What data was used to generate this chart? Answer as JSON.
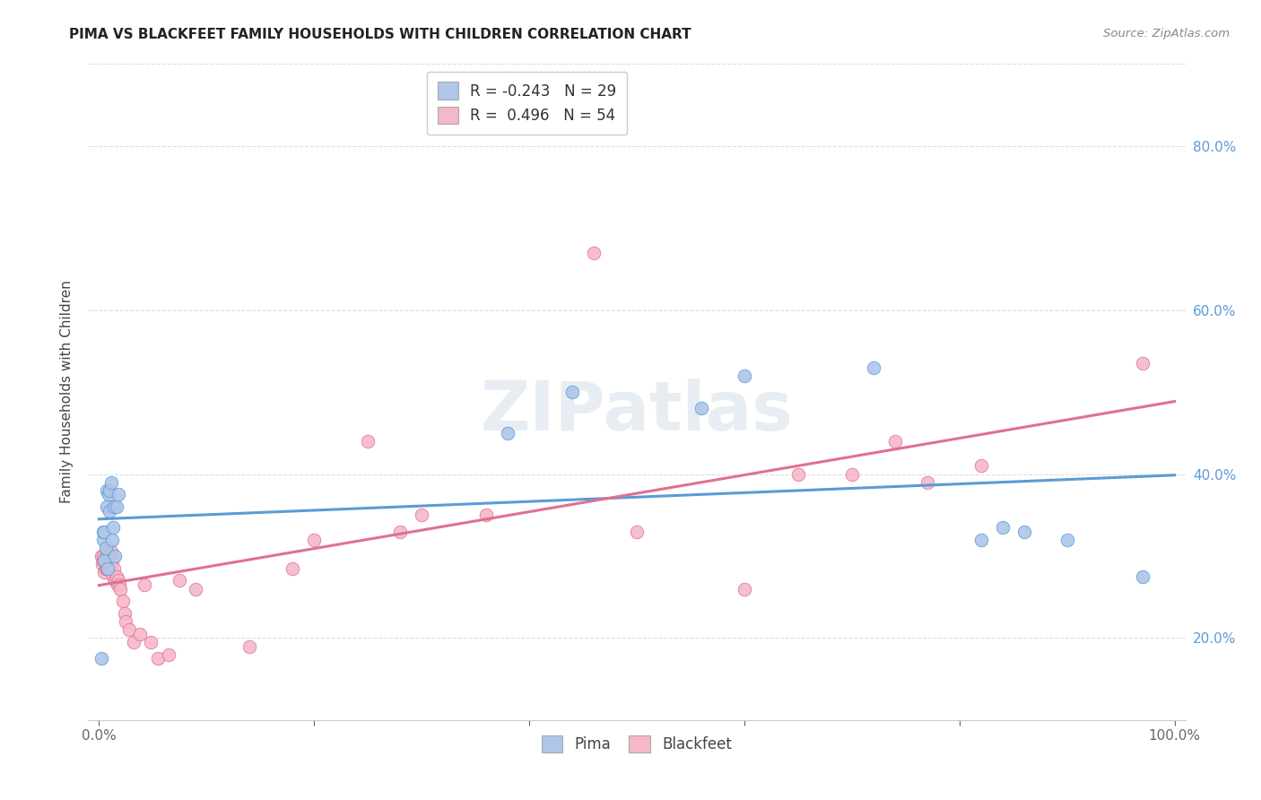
{
  "title": "PIMA VS BLACKFEET FAMILY HOUSEHOLDS WITH CHILDREN CORRELATION CHART",
  "source": "Source: ZipAtlas.com",
  "ylabel": "Family Households with Children",
  "watermark": "ZIPatlas",
  "legend_pima_r": "R = -0.243",
  "legend_pima_n": "N = 29",
  "legend_blackfeet_r": "R =  0.496",
  "legend_blackfeet_n": "N = 54",
  "pima_color": "#aec6e8",
  "blackfeet_color": "#f5b8c8",
  "pima_line_color": "#5b9bd5",
  "blackfeet_line_color": "#e07090",
  "background_color": "#ffffff",
  "pima_x": [
    0.002,
    0.004,
    0.004,
    0.005,
    0.005,
    0.006,
    0.007,
    0.007,
    0.008,
    0.009,
    0.01,
    0.01,
    0.011,
    0.012,
    0.013,
    0.014,
    0.015,
    0.016,
    0.018,
    0.38,
    0.44,
    0.56,
    0.6,
    0.72,
    0.82,
    0.84,
    0.86,
    0.9,
    0.97
  ],
  "pima_y": [
    0.175,
    0.32,
    0.33,
    0.295,
    0.33,
    0.31,
    0.36,
    0.38,
    0.285,
    0.375,
    0.355,
    0.38,
    0.39,
    0.32,
    0.335,
    0.36,
    0.3,
    0.36,
    0.375,
    0.45,
    0.5,
    0.48,
    0.52,
    0.53,
    0.32,
    0.335,
    0.33,
    0.32,
    0.275
  ],
  "blackfeet_x": [
    0.002,
    0.003,
    0.004,
    0.004,
    0.005,
    0.005,
    0.006,
    0.006,
    0.007,
    0.007,
    0.008,
    0.008,
    0.009,
    0.009,
    0.01,
    0.01,
    0.011,
    0.012,
    0.013,
    0.014,
    0.015,
    0.016,
    0.017,
    0.018,
    0.019,
    0.02,
    0.022,
    0.024,
    0.025,
    0.028,
    0.032,
    0.038,
    0.042,
    0.048,
    0.055,
    0.065,
    0.075,
    0.09,
    0.14,
    0.18,
    0.2,
    0.25,
    0.28,
    0.3,
    0.36,
    0.46,
    0.5,
    0.6,
    0.65,
    0.7,
    0.74,
    0.77,
    0.82,
    0.97
  ],
  "blackfeet_y": [
    0.3,
    0.29,
    0.295,
    0.3,
    0.28,
    0.295,
    0.285,
    0.3,
    0.3,
    0.285,
    0.31,
    0.295,
    0.285,
    0.3,
    0.3,
    0.29,
    0.305,
    0.295,
    0.275,
    0.285,
    0.27,
    0.275,
    0.265,
    0.27,
    0.265,
    0.26,
    0.245,
    0.23,
    0.22,
    0.21,
    0.195,
    0.205,
    0.265,
    0.195,
    0.175,
    0.18,
    0.27,
    0.26,
    0.19,
    0.285,
    0.32,
    0.44,
    0.33,
    0.35,
    0.35,
    0.67,
    0.33,
    0.26,
    0.4,
    0.4,
    0.44,
    0.39,
    0.41,
    0.535
  ],
  "xlim": [
    -0.01,
    1.01
  ],
  "ylim": [
    0.1,
    0.9
  ],
  "yticks": [
    0.2,
    0.4,
    0.6,
    0.8
  ],
  "ytick_labels": [
    "20.0%",
    "40.0%",
    "60.0%",
    "80.0%"
  ],
  "xtick_positions": [
    0.0,
    0.2,
    0.4,
    0.6,
    0.8,
    1.0
  ],
  "grid_color": "#dddddd",
  "spine_color": "#cccccc"
}
